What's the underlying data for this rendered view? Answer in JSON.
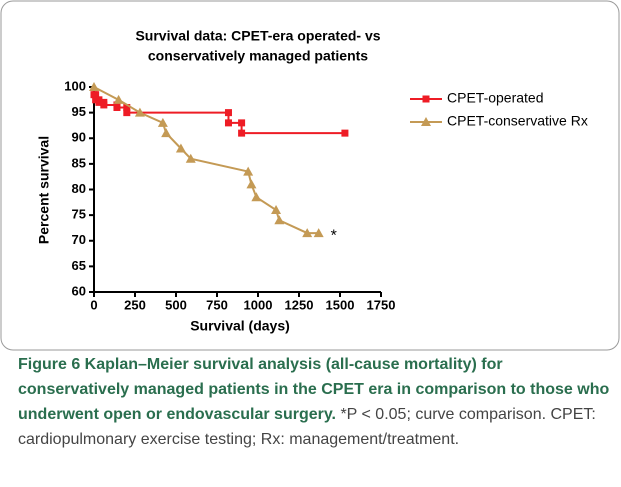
{
  "chart_data": {
    "type": "line",
    "title": [
      "Survival data: CPET-era operated- vs",
      "conservatively managed patients"
    ],
    "x_label": "Survival (days)",
    "y_label": "Percent survival",
    "xlim": [
      0,
      1750
    ],
    "xticks": [
      0,
      250,
      500,
      750,
      1000,
      1250,
      1500,
      1750
    ],
    "ylim": [
      60,
      100
    ],
    "yticks": [
      60,
      65,
      70,
      75,
      80,
      85,
      90,
      95,
      100
    ],
    "legend": "upper right",
    "annotation": "*",
    "series": [
      {
        "name": "CPET-operated",
        "color": "#ee1c25",
        "marker": "square",
        "x": [
          0,
          10,
          10,
          30,
          30,
          60,
          60,
          140,
          140,
          200,
          200,
          820,
          820,
          900,
          900,
          1530
        ],
        "values": [
          98.5,
          98.5,
          97.5,
          97.5,
          97,
          97,
          96.5,
          96.5,
          96,
          96,
          95,
          95,
          93,
          93,
          91,
          91
        ]
      },
      {
        "name": "CPET-conservative Rx",
        "color": "#c49a55",
        "marker": "triangle",
        "x": [
          0,
          150,
          280,
          420,
          440,
          530,
          590,
          940,
          960,
          990,
          1110,
          1130,
          1300,
          1370
        ],
        "values": [
          100,
          97.5,
          95,
          93,
          91,
          88,
          86,
          83.5,
          81,
          78.5,
          76,
          74,
          71.5,
          71.5
        ]
      }
    ]
  },
  "caption": {
    "bold": "Figure 6 Kaplan–Meier survival analysis (all-cause mortality) for conservatively managed patients in the CPET era in comparison to those who underwent open or endovascular surgery.",
    "text": "*P < 0.05; curve comparison. CPET: cardiopulmonary exercise testing; Rx: management/treatment."
  }
}
